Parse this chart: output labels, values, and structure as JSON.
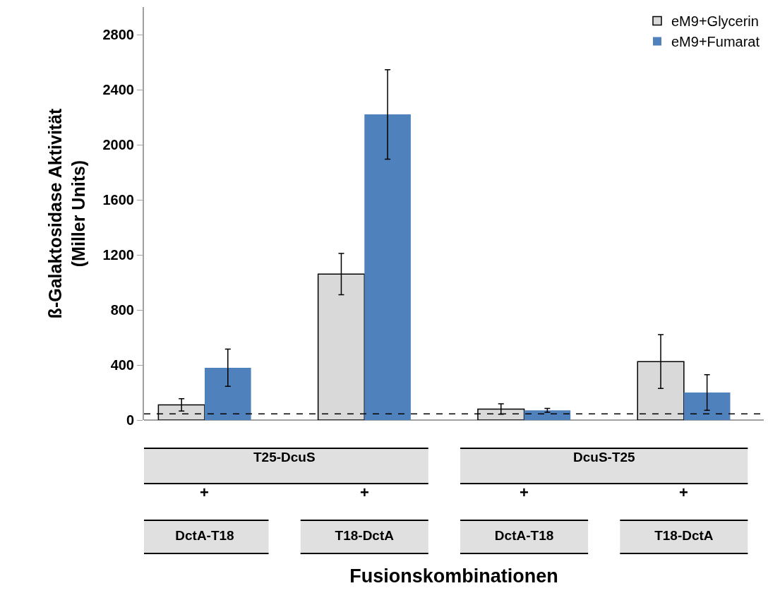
{
  "chart_data": {
    "type": "bar",
    "xlabel": "Fusionskombinationen",
    "ylabel": "ß-Galaktosidase Aktivität\n(Miller Units)",
    "categories": [
      "DctA-T18",
      "T18-DctA",
      "DctA-T18",
      "T18-DctA"
    ],
    "series": [
      {
        "name": "eM9+Glycerin",
        "color": "#d9d9d9",
        "values": [
          110,
          1060,
          80,
          425
        ],
        "errors": [
          45,
          150,
          38,
          195
        ]
      },
      {
        "name": "eM9+Fumarat",
        "color": "#4f81bd",
        "values": [
          380,
          2220,
          70,
          200
        ],
        "errors": [
          135,
          325,
          14,
          130
        ]
      }
    ],
    "annotations": [
      "T25-DcuS",
      "DcuS-T25",
      "+",
      "+",
      "+",
      "+"
    ],
    "ref_lines": [
      {
        "axis": "y",
        "value": 45,
        "line_style": "dashed",
        "color": "#000000"
      }
    ],
    "ylim": [
      0,
      3000
    ],
    "yticks": [
      0,
      400,
      800,
      1200,
      1600,
      2000,
      2400,
      2800
    ],
    "grid": false,
    "legend": "top right"
  }
}
